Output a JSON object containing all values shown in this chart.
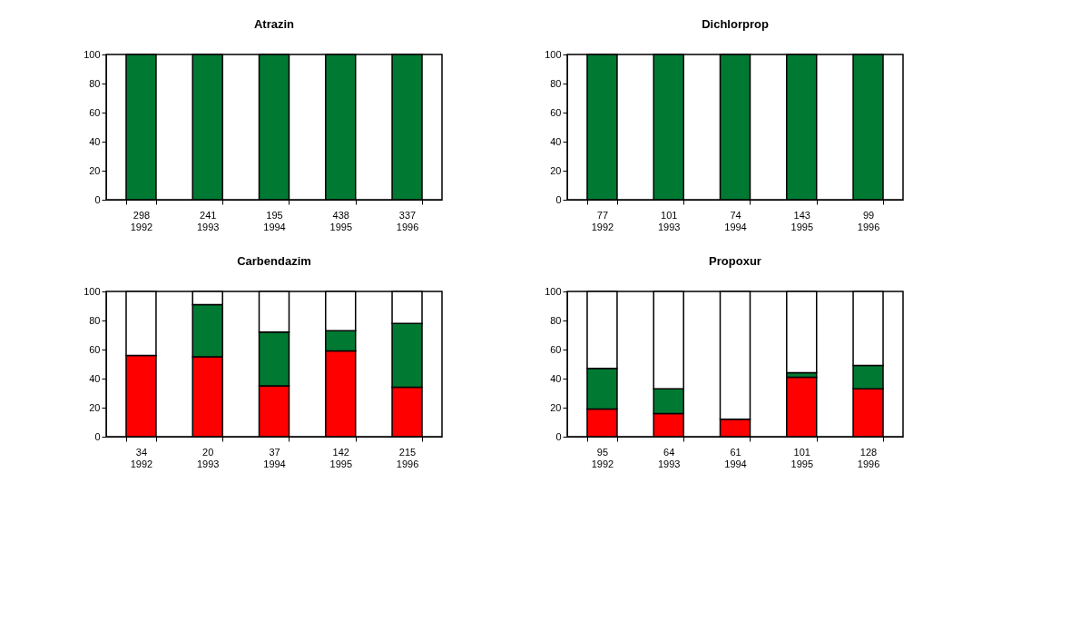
{
  "chart_data": [
    {
      "type": "bar",
      "stacked": true,
      "title": "Atrazin",
      "categories": [
        "298\n1992",
        "241\n1993",
        "195\n1994",
        "438\n1995",
        "337\n1996"
      ],
      "ylim": [
        0,
        100
      ],
      "yticks": [
        0,
        20,
        40,
        60,
        80,
        100
      ],
      "grid": false,
      "legend": false,
      "series": [
        {
          "color": "#ff0000",
          "values": [
            null,
            null,
            null,
            null,
            null
          ]
        },
        {
          "color": "#007a33",
          "values": [
            100,
            100,
            100,
            100,
            100
          ]
        },
        {
          "color": "#ffffff",
          "values": [
            null,
            null,
            null,
            null,
            null
          ]
        }
      ]
    },
    {
      "type": "bar",
      "stacked": true,
      "title": "Dichlorprop",
      "categories": [
        "77\n1992",
        "101\n1993",
        "74\n1994",
        "143\n1995",
        "99\n1996"
      ],
      "ylim": [
        0,
        100
      ],
      "yticks": [
        0,
        20,
        40,
        60,
        80,
        100
      ],
      "grid": false,
      "legend": false,
      "series": [
        {
          "color": "#ff0000",
          "values": [
            null,
            null,
            null,
            null,
            null
          ]
        },
        {
          "color": "#007a33",
          "values": [
            100,
            100,
            100,
            100,
            100
          ]
        },
        {
          "color": "#ffffff",
          "values": [
            null,
            null,
            null,
            null,
            null
          ]
        }
      ]
    },
    {
      "type": "bar",
      "stacked": true,
      "title": "Carbendazim",
      "categories": [
        "34\n1992",
        "20\n1993",
        "37\n1994",
        "142\n1995",
        "215\n1996"
      ],
      "ylim": [
        0,
        100
      ],
      "yticks": [
        0,
        20,
        40,
        60,
        80,
        100
      ],
      "grid": false,
      "legend": false,
      "series": [
        {
          "color": "#ff0000",
          "values": [
            56,
            55,
            35,
            59,
            34
          ]
        },
        {
          "color": "#007a33",
          "values": [
            null,
            36,
            37,
            14,
            44
          ]
        },
        {
          "color": "#ffffff",
          "values": [
            44,
            9,
            28,
            27,
            22
          ]
        }
      ]
    },
    {
      "type": "bar",
      "stacked": true,
      "title": "Propoxur",
      "categories": [
        "95\n1992",
        "64\n1993",
        "61\n1994",
        "101\n1995",
        "128\n1996"
      ],
      "ylim": [
        0,
        100
      ],
      "yticks": [
        0,
        20,
        40,
        60,
        80,
        100
      ],
      "grid": false,
      "legend": false,
      "series": [
        {
          "color": "#ff0000",
          "values": [
            19,
            16,
            12,
            41,
            33
          ]
        },
        {
          "color": "#007a33",
          "values": [
            28,
            17,
            null,
            3,
            16
          ]
        },
        {
          "color": "#ffffff",
          "values": [
            53,
            67,
            88,
            56,
            51
          ]
        }
      ]
    }
  ]
}
